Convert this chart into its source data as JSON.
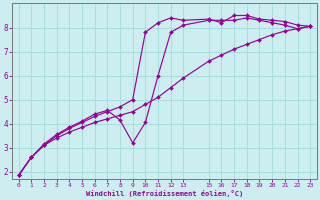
{
  "bg_color": "#cceef0",
  "grid_color": "#aadddd",
  "line_color": "#990099",
  "xlabel": "Windchill (Refroidissement éolien,°C)",
  "xlim": [
    -0.5,
    23.5
  ],
  "ylim": [
    1.7,
    9.0
  ],
  "xticks": [
    0,
    1,
    2,
    3,
    4,
    5,
    6,
    7,
    8,
    9,
    10,
    11,
    12,
    13,
    15,
    16,
    17,
    18,
    19,
    20,
    21,
    22,
    23
  ],
  "yticks": [
    2,
    3,
    4,
    5,
    6,
    7,
    8
  ],
  "lines": [
    {
      "x": [
        0,
        1,
        2,
        3,
        4,
        5,
        6,
        7,
        8,
        9,
        10,
        11,
        12,
        13,
        15,
        16,
        17,
        18,
        19,
        20,
        21,
        22,
        23
      ],
      "y": [
        1.85,
        2.6,
        3.1,
        3.4,
        3.65,
        3.85,
        4.05,
        4.2,
        4.35,
        4.5,
        4.8,
        5.1,
        5.5,
        5.9,
        6.6,
        6.85,
        7.1,
        7.3,
        7.5,
        7.7,
        7.85,
        7.95,
        8.05
      ],
      "marker": "D",
      "markersize": 2.0
    },
    {
      "x": [
        0,
        1,
        2,
        3,
        4,
        5,
        6,
        7,
        8,
        9,
        10,
        11,
        12,
        13,
        15,
        16,
        17,
        18,
        19,
        20,
        21,
        22,
        23
      ],
      "y": [
        1.85,
        2.6,
        3.1,
        3.5,
        3.8,
        4.05,
        4.3,
        4.5,
        4.7,
        5.0,
        7.8,
        8.2,
        8.4,
        8.3,
        8.35,
        8.2,
        8.5,
        8.5,
        8.35,
        8.3,
        8.25,
        8.1,
        8.05
      ],
      "marker": "D",
      "markersize": 2.0
    },
    {
      "x": [
        0,
        1,
        2,
        3,
        4,
        5,
        6,
        7,
        8,
        9,
        10,
        11,
        12,
        13,
        15,
        16,
        17,
        18,
        19,
        20,
        21,
        22,
        23
      ],
      "y": [
        1.85,
        2.6,
        3.15,
        3.55,
        3.85,
        4.1,
        4.4,
        4.55,
        4.15,
        3.2,
        4.05,
        6.0,
        7.8,
        8.1,
        8.3,
        8.3,
        8.3,
        8.4,
        8.3,
        8.2,
        8.1,
        7.95,
        8.05
      ],
      "marker": "D",
      "markersize": 2.0
    }
  ]
}
